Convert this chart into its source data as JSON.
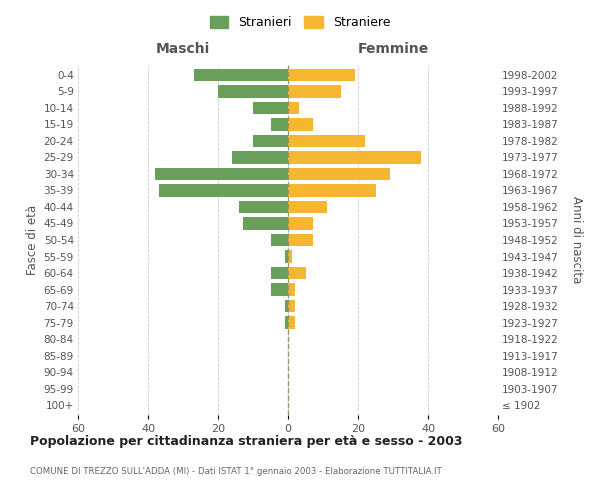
{
  "age_groups": [
    "100+",
    "95-99",
    "90-94",
    "85-89",
    "80-84",
    "75-79",
    "70-74",
    "65-69",
    "60-64",
    "55-59",
    "50-54",
    "45-49",
    "40-44",
    "35-39",
    "30-34",
    "25-29",
    "20-24",
    "15-19",
    "10-14",
    "5-9",
    "0-4"
  ],
  "birth_years": [
    "≤ 1902",
    "1903-1907",
    "1908-1912",
    "1913-1917",
    "1918-1922",
    "1923-1927",
    "1928-1932",
    "1933-1937",
    "1938-1942",
    "1943-1947",
    "1948-1952",
    "1953-1957",
    "1958-1962",
    "1963-1967",
    "1968-1972",
    "1973-1977",
    "1978-1982",
    "1983-1987",
    "1988-1992",
    "1993-1997",
    "1998-2002"
  ],
  "maschi": [
    0,
    0,
    0,
    0,
    0,
    1,
    1,
    5,
    5,
    1,
    5,
    13,
    14,
    37,
    38,
    16,
    10,
    5,
    10,
    20,
    27
  ],
  "femmine": [
    0,
    0,
    0,
    0,
    0,
    2,
    2,
    2,
    5,
    1,
    7,
    7,
    11,
    25,
    29,
    38,
    22,
    7,
    3,
    15,
    19
  ],
  "color_maschi": "#6a9e5b",
  "color_femmine": "#f5b731",
  "legend_maschi": "Stranieri",
  "legend_femmine": "Straniere",
  "label_maschi": "Maschi",
  "label_femmine": "Femmine",
  "ylabel_left": "Fasce di età",
  "ylabel_right": "Anni di nascita",
  "xlim": 60,
  "main_title": "Popolazione per cittadinanza straniera per età e sesso - 2003",
  "subtitle": "COMUNE DI TREZZO SULL'ADDA (MI) - Dati ISTAT 1° gennaio 2003 - Elaborazione TUTTITALIA.IT",
  "bg_color": "#ffffff",
  "grid_color": "#cccccc",
  "bar_height": 0.75
}
